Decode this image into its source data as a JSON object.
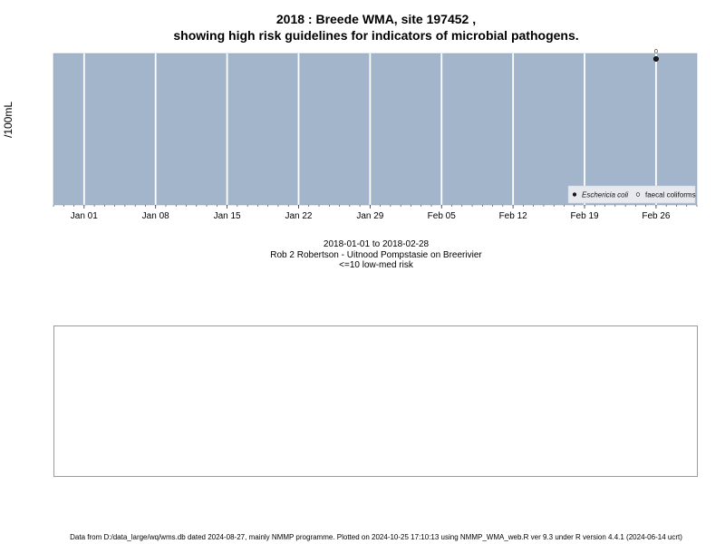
{
  "title": {
    "line1": "2018 : Breede WMA, site 197452 ,",
    "line2": "showing high risk guidelines for indicators of microbial pathogens."
  },
  "colors": {
    "panel_bg": "#a3b5cb",
    "grid": "#ffffff",
    "point_fill": "#1c1c1c",
    "legend_bg": "#e6e9ee"
  },
  "chart_data": {
    "type": "scatter",
    "title": "2018 : Breede WMA, site 197452 , showing high risk guidelines for indicators of microbial pathogens.",
    "ylabel": "/100mL",
    "xlabel": "",
    "x_axis_type": "date",
    "xlim": [
      "2017-12-29",
      "2018-03-02"
    ],
    "ylim_note": "no y tick labels shown",
    "x_ticks": [
      {
        "date": "2018-01-01",
        "label": "Jan 01"
      },
      {
        "date": "2018-01-08",
        "label": "Jan 08"
      },
      {
        "date": "2018-01-15",
        "label": "Jan 15"
      },
      {
        "date": "2018-01-22",
        "label": "Jan 22"
      },
      {
        "date": "2018-01-29",
        "label": "Jan 29"
      },
      {
        "date": "2018-02-05",
        "label": "Feb 05"
      },
      {
        "date": "2018-02-12",
        "label": "Feb 12"
      },
      {
        "date": "2018-02-19",
        "label": "Feb 19"
      },
      {
        "date": "2018-02-26",
        "label": "Feb 26"
      }
    ],
    "series": [
      {
        "name": "Eschericia coli",
        "marker": "filled",
        "points": [
          {
            "x": "2018-02-26",
            "label": "0"
          }
        ]
      },
      {
        "name": "faecal coliforms",
        "marker": "open",
        "points": []
      }
    ],
    "grid": true,
    "legend_position": "bottom-right"
  },
  "captions": {
    "range": "2018-01-01 to 2018-02-28",
    "site": "Rob 2 Robertson - Uitnood Pompstasie on Breerivier",
    "risk": "<=10 low-med risk"
  },
  "footer": "Data from D:/data_large/wq/wms.db dated 2024-08-27, mainly NMMP programme. Plotted on 2024-10-25 17:10:13 using NMMP_WMA_web.R ver 9.3 under R version 4.4.1 (2024-06-14 ucrt)"
}
